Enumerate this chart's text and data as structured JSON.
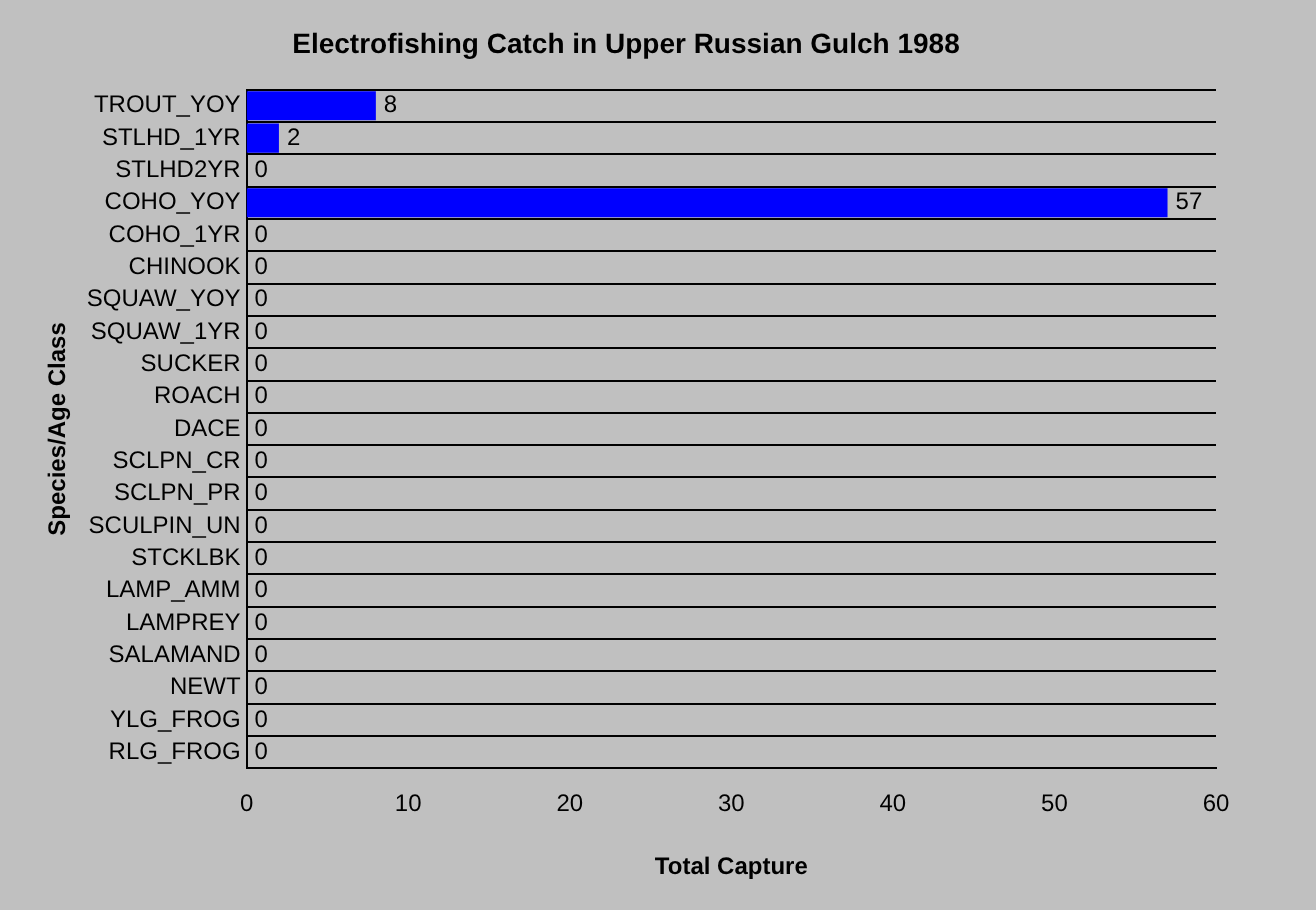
{
  "chart_data": {
    "type": "bar",
    "orientation": "horizontal",
    "title": "Electrofishing Catch in Upper Russian Gulch 1988",
    "xlabel": "Total Capture",
    "ylabel": "Species/Age Class",
    "categories": [
      "TROUT_YOY",
      "STLHD_1YR",
      "STLHD2YR",
      "COHO_YOY",
      "COHO_1YR",
      "CHINOOK",
      "SQUAW_YOY",
      "SQUAW_1YR",
      "SUCKER",
      "ROACH",
      "DACE",
      "SCLPN_CR",
      "SCLPN_PR",
      "SCULPIN_UN",
      "STCKLBK",
      "LAMP_AMM",
      "LAMPREY",
      "SALAMAND",
      "NEWT",
      "YLG_FROG",
      "RLG_FROG"
    ],
    "values": [
      8,
      2,
      0,
      57,
      0,
      0,
      0,
      0,
      0,
      0,
      0,
      0,
      0,
      0,
      0,
      0,
      0,
      0,
      0,
      0,
      0
    ],
    "color": "#0000ff",
    "xlim": [
      0,
      60
    ],
    "xticks": [
      0,
      10,
      20,
      30,
      40,
      50,
      60
    ],
    "grid": "y",
    "data_labels": true,
    "legend": false
  }
}
